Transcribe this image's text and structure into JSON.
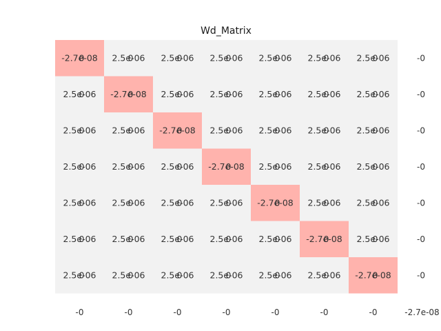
{
  "chart_data": {
    "type": "heatmap",
    "title": "Wd_Matrix",
    "xlabel": "",
    "ylabel": "",
    "rows": 7,
    "cols": 7,
    "diagonal_label": "-2.7e-08",
    "off_diagonal_label": "2.5e-06",
    "overlay_label": "0",
    "diagonal_value": -2.7e-08,
    "off_diagonal_value": 2.5e-06,
    "row_sum_labels": [
      "-0",
      "-0",
      "-0",
      "-0",
      "-0",
      "-0",
      "-0"
    ],
    "col_sum_labels": [
      "-0",
      "-0",
      "-0",
      "-0",
      "-0",
      "-0",
      "-0",
      "-2.7e-08"
    ],
    "colors": {
      "background_cell": "#f2f2f2",
      "diagonal_cell": "#ffb3ad"
    }
  }
}
